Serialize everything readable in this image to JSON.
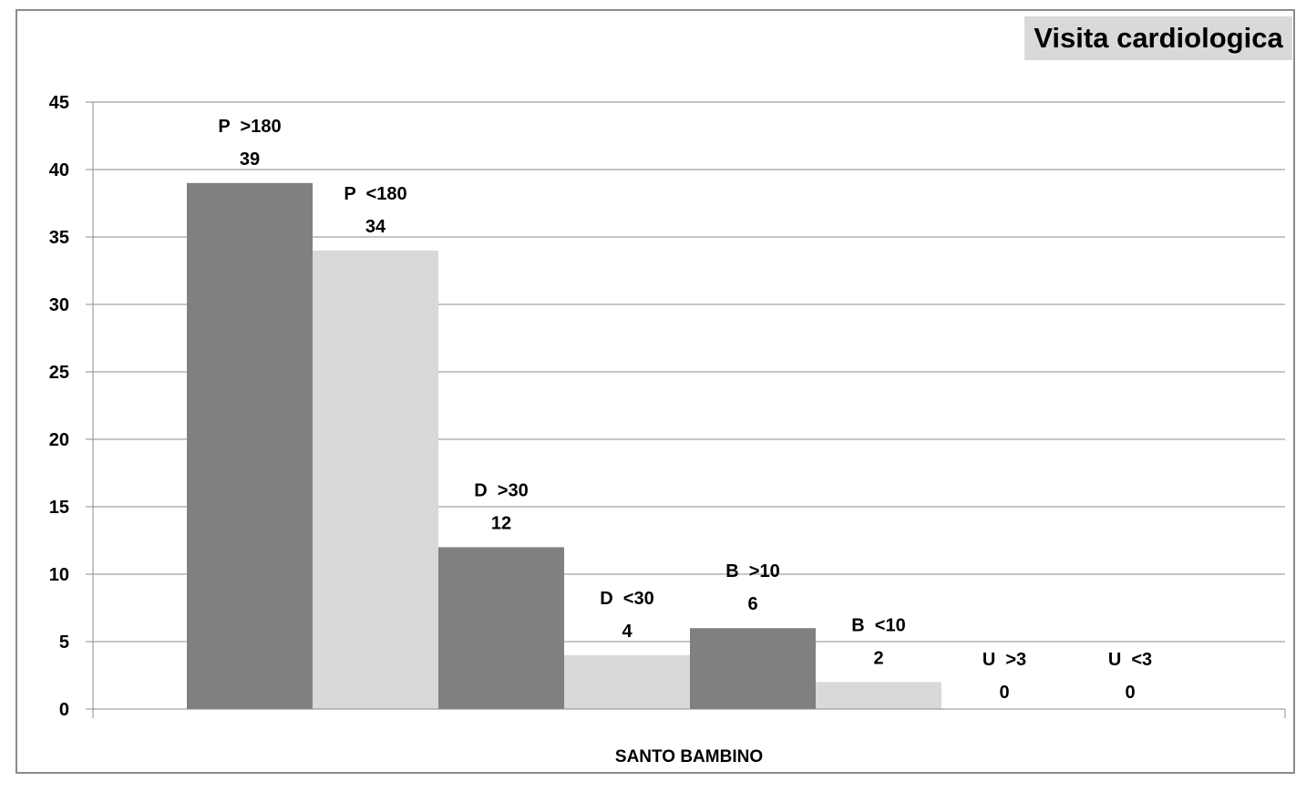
{
  "chart_data": {
    "type": "bar",
    "title": "Visita cardiologica",
    "categories": [
      "SANTO BAMBINO"
    ],
    "xlabel": "",
    "ylabel": "",
    "ylim": [
      0,
      45
    ],
    "yticks": [
      0,
      5,
      10,
      15,
      20,
      25,
      30,
      35,
      40,
      45
    ],
    "grid": true,
    "legend": "none",
    "series": [
      {
        "name": "P  >180",
        "values": [
          39
        ],
        "color": "#808080"
      },
      {
        "name": "P  <180",
        "values": [
          34
        ],
        "color": "#d9d9d9"
      },
      {
        "name": "D  >30",
        "values": [
          12
        ],
        "color": "#808080"
      },
      {
        "name": "D  <30",
        "values": [
          4
        ],
        "color": "#d9d9d9"
      },
      {
        "name": "B  >10",
        "values": [
          6
        ],
        "color": "#808080"
      },
      {
        "name": "B  <10",
        "values": [
          2
        ],
        "color": "#d9d9d9"
      },
      {
        "name": "U  >3",
        "values": [
          0
        ],
        "color": "#808080"
      },
      {
        "name": "U  <3",
        "values": [
          0
        ],
        "color": "#d9d9d9"
      }
    ]
  }
}
